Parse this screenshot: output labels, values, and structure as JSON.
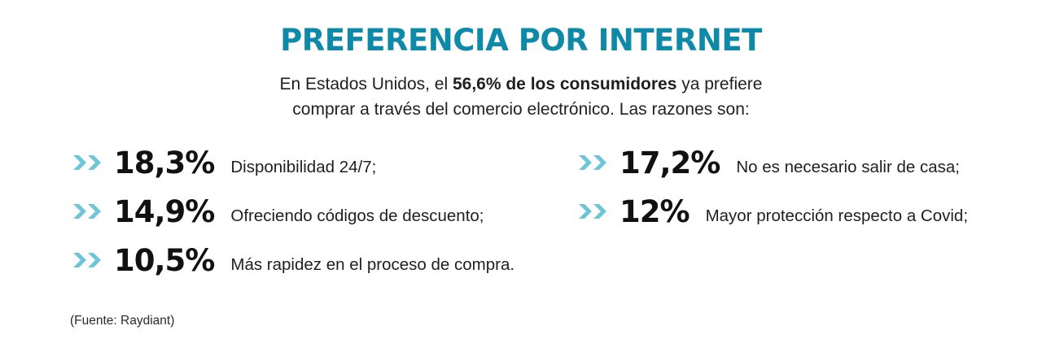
{
  "title": "PREFERENCIA POR INTERNET",
  "intro": {
    "line1_before": "En Estados Unidos, el ",
    "line1_bold": "56,6% de los consumidores",
    "line1_after": " ya prefiere",
    "line2": "comprar a través del comercio electrónico. Las razones son:"
  },
  "accent_color": "#0e8aa8",
  "chevron_color": "#6cc6d8",
  "chevron_icon": "double-chevron-right-icon",
  "stats": [
    {
      "value": "18,3%",
      "label": "Disponibilidad 24/7;"
    },
    {
      "value": "14,9%",
      "label": "Ofreciendo códigos de descuento;"
    },
    {
      "value": "10,5%",
      "label": "Más rapidez en el proceso de compra."
    },
    {
      "value": "17,2%",
      "label": "No es necesario salir de casa;"
    },
    {
      "value": "12%",
      "label": "Mayor protección respecto a Covid;"
    }
  ],
  "source": "(Fuente: Raydiant)"
}
